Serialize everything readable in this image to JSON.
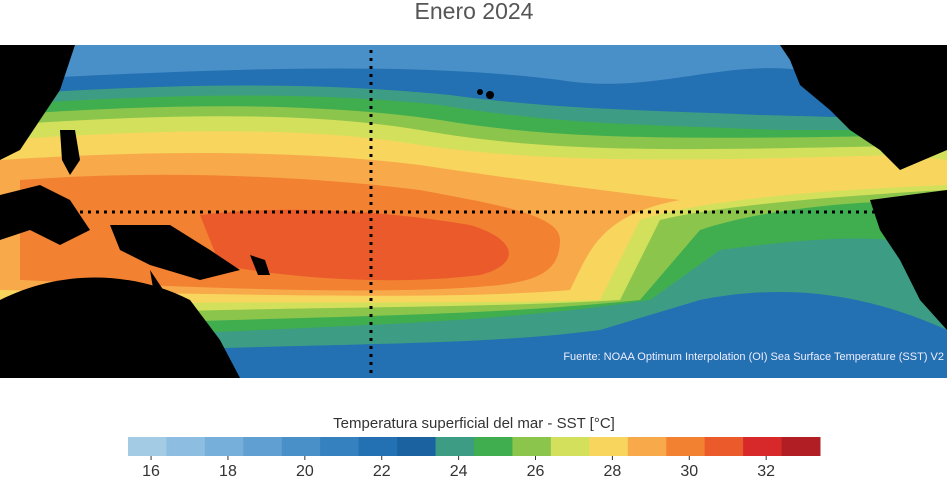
{
  "title": "Enero 2024",
  "map": {
    "source": "Fuente: NOAA Optimum Interpolation (OI) Sea Surface Temperature (SST) V2"
  },
  "colorbar": {
    "label": "Temperatura superficial del mar - SST  [°C]",
    "xlim": [
      15.4,
      33.4
    ],
    "xticks": [
      16,
      18,
      20,
      22,
      24,
      26,
      28,
      30,
      32
    ],
    "colors": [
      "#a4cbe4",
      "#8dbde0",
      "#76afd9",
      "#5f9fd1",
      "#4a90c8",
      "#3580be",
      "#2370b2",
      "#1a62a0",
      "#3d9c84",
      "#40ae4f",
      "#8cc54c",
      "#d3e05c",
      "#f8d65e",
      "#f8aa4a",
      "#f28232",
      "#ea5a2a",
      "#d7282a",
      "#b11f25"
    ]
  }
}
